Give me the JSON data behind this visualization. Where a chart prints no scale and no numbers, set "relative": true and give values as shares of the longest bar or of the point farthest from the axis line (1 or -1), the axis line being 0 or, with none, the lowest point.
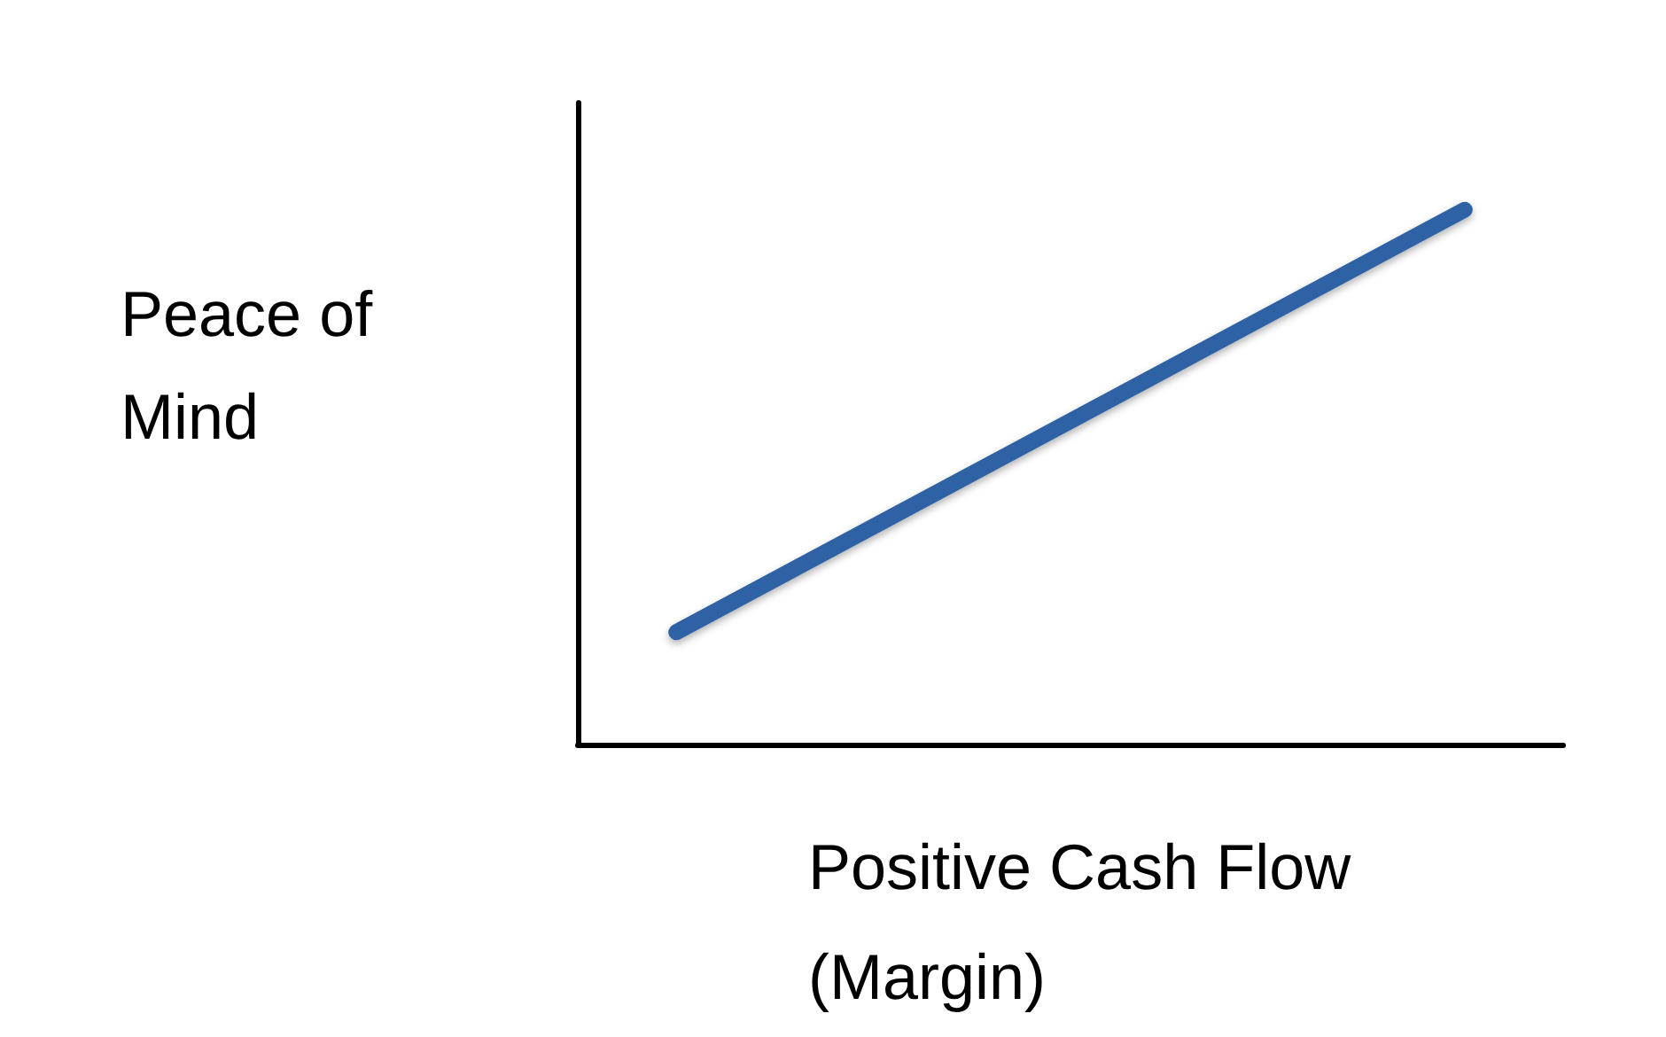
{
  "chart_data": {
    "type": "line",
    "xlabel": "Positive Cash Flow\n(Margin)",
    "ylabel": "Peace of\nMind",
    "categories": [
      null,
      null,
      null,
      null,
      null
    ],
    "values": [
      0.21,
      null,
      null,
      null,
      1
    ],
    "color": "#2e62a5",
    "relative": true
  }
}
